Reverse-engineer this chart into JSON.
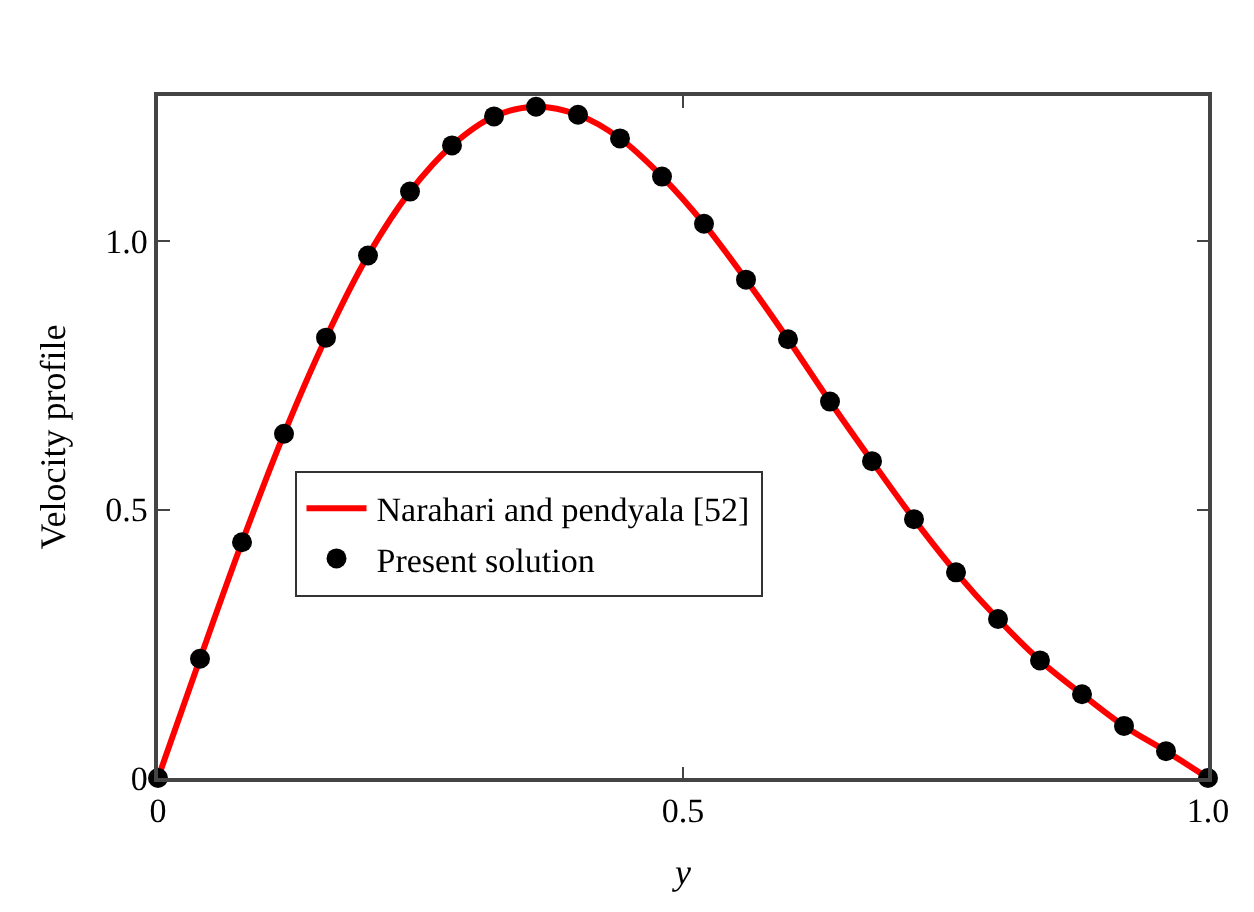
{
  "chart_data": {
    "type": "line",
    "xlabel": "y",
    "ylabel": "Velocity profile",
    "x": [
      0,
      0.04,
      0.08,
      0.12,
      0.16,
      0.2,
      0.24,
      0.28,
      0.32,
      0.36,
      0.4,
      0.44,
      0.48,
      0.52,
      0.56,
      0.6,
      0.64,
      0.68,
      0.72,
      0.76,
      0.8,
      0.84,
      0.88,
      0.92,
      0.96,
      1.0
    ],
    "series": [
      {
        "name": "Narahari and pendyala [52]",
        "color": "#ff0000",
        "marker": "none",
        "line_style": "solid",
        "values": [
          0,
          0.222,
          0.439,
          0.641,
          0.82,
          0.973,
          1.092,
          1.178,
          1.232,
          1.25,
          1.235,
          1.191,
          1.12,
          1.032,
          0.928,
          0.817,
          0.701,
          0.59,
          0.482,
          0.383,
          0.296,
          0.219,
          0.156,
          0.097,
          0.05,
          0
        ]
      },
      {
        "name": "Present solution",
        "color": "#000000",
        "type": "scatter",
        "marker": "circle",
        "values": [
          0,
          0.222,
          0.439,
          0.641,
          0.82,
          0.973,
          1.092,
          1.178,
          1.232,
          1.25,
          1.235,
          1.191,
          1.12,
          1.032,
          0.928,
          0.817,
          0.701,
          0.59,
          0.482,
          0.383,
          0.296,
          0.219,
          0.156,
          0.097,
          0.05,
          0
        ]
      }
    ],
    "xlim": [
      0,
      1.0
    ],
    "xticks": [
      0,
      0.5,
      {
        "value": 1.0,
        "label": "1.0"
      }
    ],
    "ylim": [
      0,
      1.27
    ],
    "yticks": [
      0,
      0.5,
      {
        "value": 1.0,
        "label": "1.0"
      }
    ],
    "legend": "left"
  }
}
